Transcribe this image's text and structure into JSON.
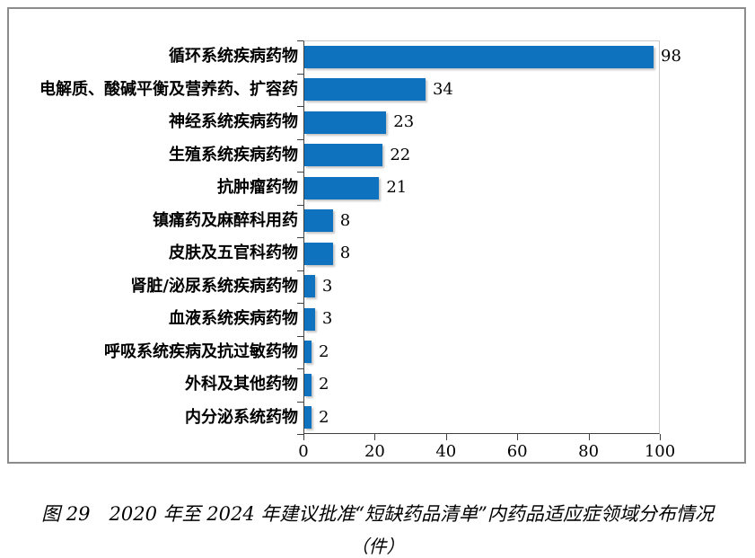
{
  "chart_data": {
    "type": "bar",
    "orientation": "horizontal",
    "categories": [
      "循环系统疾病药物",
      "电解质、酸碱平衡及营养药、扩容药",
      "神经系统疾病药物",
      "生殖系统疾病药物",
      "抗肿瘤药物",
      "镇痛药及麻醉科用药",
      "皮肤及五官科药物",
      "肾脏/泌尿系统疾病药物",
      "血液系统疾病药物",
      "呼吸系统疾病及抗过敏药物",
      "外科及其他药物",
      "内分泌系统药物"
    ],
    "values": [
      98,
      34,
      23,
      22,
      21,
      8,
      8,
      3,
      3,
      2,
      2,
      2
    ],
    "xlim": [
      0,
      100
    ],
    "x_ticks": [
      0,
      20,
      40,
      60,
      80,
      100
    ],
    "grid": false,
    "legend": false,
    "value_labels": true,
    "xlabel": "",
    "ylabel": "",
    "title": "图 29　2020 年至 2024 年建议批准“短缺药品清单”内药品适应症领域分布情况",
    "unit_label": "（件）"
  },
  "colors": {
    "bar": "#0E72BE",
    "frame_border": "#8c8c8c",
    "axis_line": "#404040",
    "plot_border_light": "#c9c9c9",
    "text": "#000000"
  }
}
